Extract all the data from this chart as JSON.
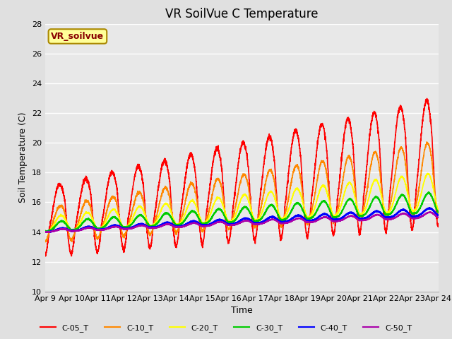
{
  "title": "VR SoilVue C Temperature",
  "ylabel": "Soil Temperature (C)",
  "xlabel": "Time",
  "ylim": [
    10,
    28
  ],
  "yticks": [
    10,
    12,
    14,
    16,
    18,
    20,
    22,
    24,
    26,
    28
  ],
  "n_days": 15,
  "xtick_labels": [
    "Apr 9",
    "Apr 10",
    "Apr 11",
    "Apr 12",
    "Apr 13",
    "Apr 14",
    "Apr 15",
    "Apr 16",
    "Apr 17",
    "Apr 18",
    "Apr 19",
    "Apr 20",
    "Apr 21",
    "Apr 22",
    "Apr 23",
    "Apr 24"
  ],
  "series": {
    "C-05_T": {
      "color": "#ff0000",
      "lw": 1.2
    },
    "C-10_T": {
      "color": "#ff8800",
      "lw": 1.2
    },
    "C-20_T": {
      "color": "#ffff00",
      "lw": 1.2
    },
    "C-30_T": {
      "color": "#00cc00",
      "lw": 1.5
    },
    "C-40_T": {
      "color": "#0000ff",
      "lw": 1.8
    },
    "C-50_T": {
      "color": "#aa00aa",
      "lw": 1.5
    }
  },
  "background_color": "#e0e0e0",
  "plot_bg_color": "#e8e8e8",
  "grid_color": "#ffffff",
  "legend_box_color": "#ffff99",
  "legend_box_border": "#aa8800",
  "annotation_text": "VR_soilvue",
  "annotation_color": "#880000",
  "title_fontsize": 12,
  "axis_fontsize": 9,
  "tick_fontsize": 8
}
